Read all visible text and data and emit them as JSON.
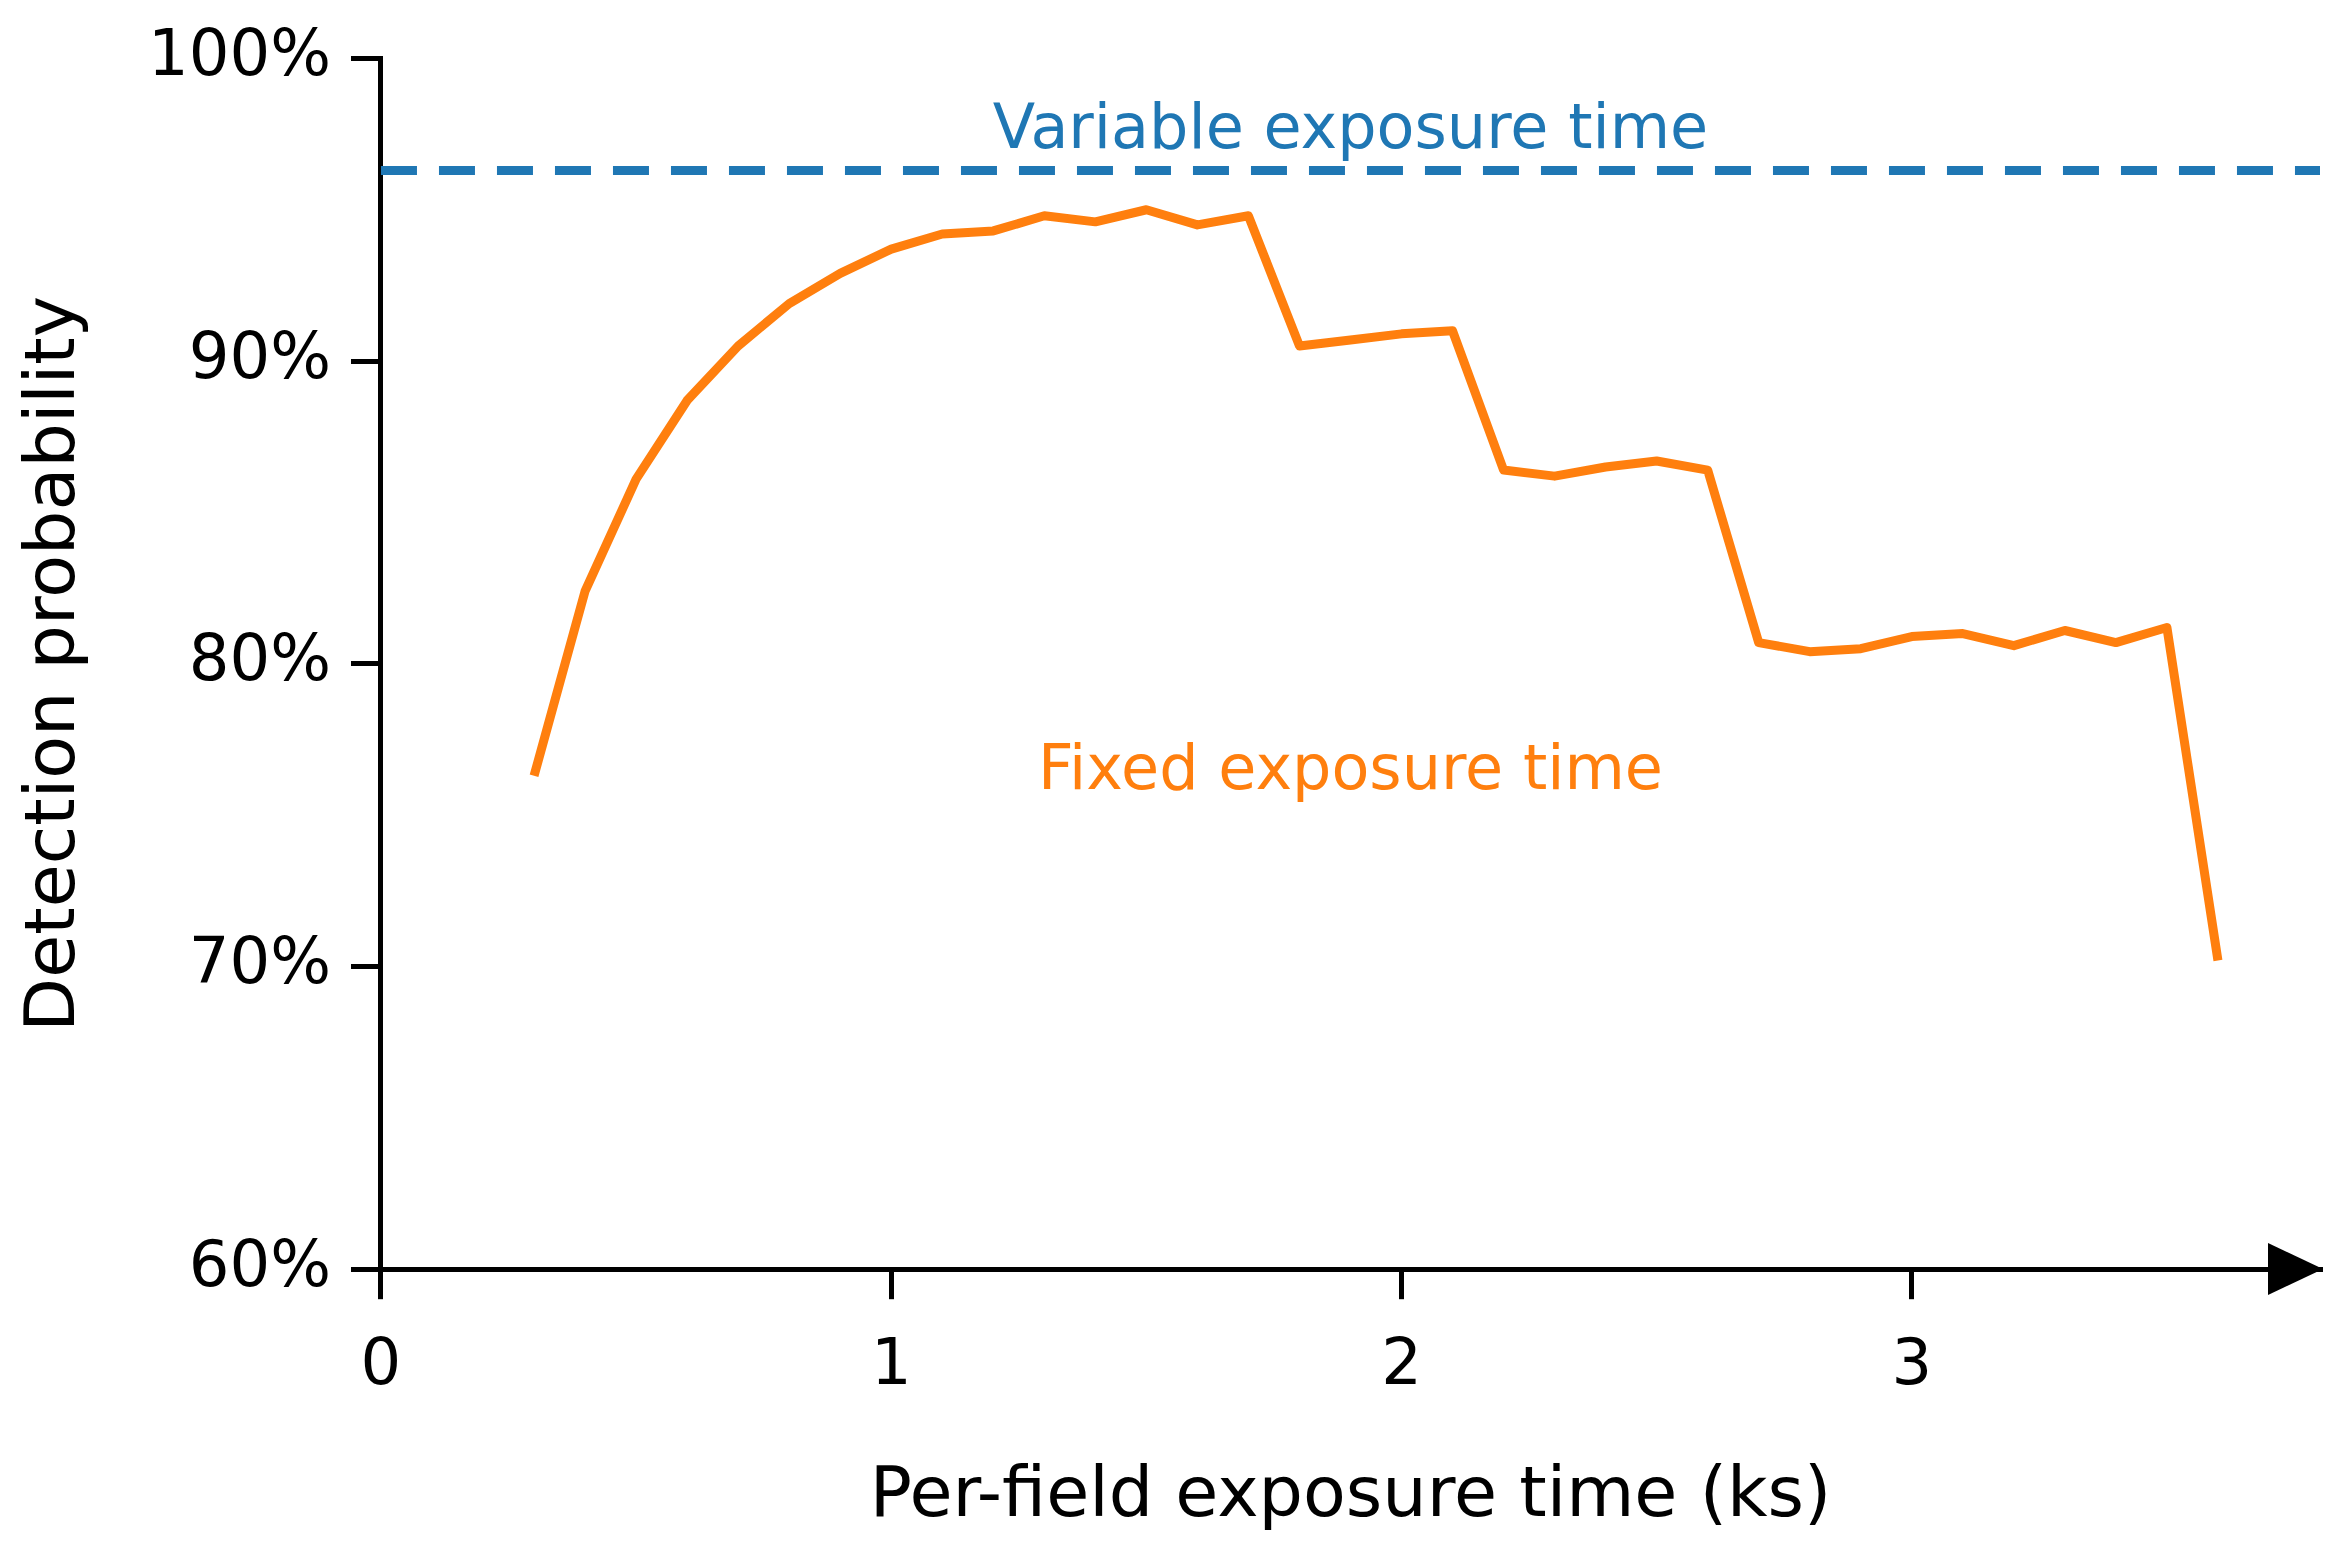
{
  "chart_data": {
    "type": "line",
    "xlabel": "Per-field exposure time (ks)",
    "ylabel": "Detection probability",
    "xlim": [
      0,
      3.8
    ],
    "xticks": [
      0,
      1,
      2,
      3
    ],
    "ylim": [
      60,
      100
    ],
    "yticks": [
      {
        "value": 60,
        "label": "60%"
      },
      {
        "value": 70,
        "label": "70%"
      },
      {
        "value": 80,
        "label": "80%"
      },
      {
        "value": 90,
        "label": "90%"
      },
      {
        "value": 100,
        "label": "100%"
      }
    ],
    "grid": false,
    "legend": false,
    "marker": "none",
    "line_style": "solid",
    "x": [
      0.3,
      0.4,
      0.5,
      0.6,
      0.7,
      0.8,
      0.9,
      1.0,
      1.1,
      1.2,
      1.3,
      1.4,
      1.5,
      1.6,
      1.7,
      1.8,
      1.9,
      2.0,
      2.1,
      2.2,
      2.3,
      2.4,
      2.5,
      2.6,
      2.7,
      2.8,
      2.9,
      3.0,
      3.1,
      3.2,
      3.3,
      3.4,
      3.5,
      3.6
    ],
    "series": [
      {
        "name": "Fixed exposure time",
        "color": "#ff7f0e",
        "values": [
          76.3,
          82.4,
          86.1,
          88.7,
          90.5,
          91.9,
          92.9,
          93.7,
          94.2,
          94.3,
          94.8,
          94.6,
          95.0,
          94.5,
          94.8,
          90.5,
          90.7,
          90.9,
          91.0,
          86.4,
          86.2,
          86.5,
          86.7,
          86.4,
          80.7,
          80.4,
          80.5,
          80.9,
          81.0,
          80.6,
          81.1,
          80.7,
          81.2,
          70.2
        ]
      }
    ],
    "ref_lines": [
      {
        "axis": "y",
        "value": 96.3,
        "label": "Variable exposure time",
        "color": "#1f77b4",
        "line_style": "dashed"
      }
    ]
  }
}
